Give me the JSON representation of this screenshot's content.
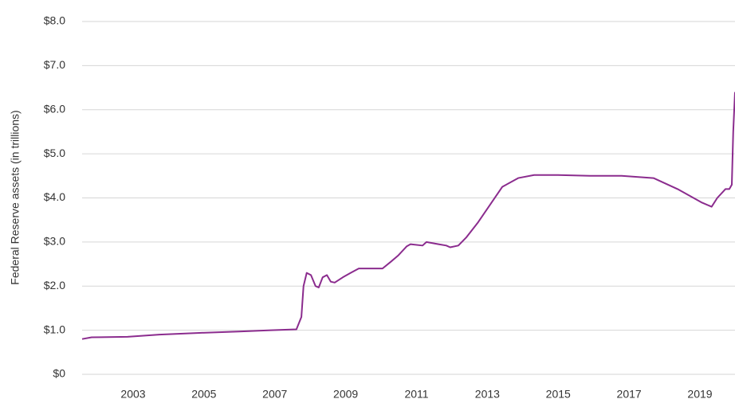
{
  "chart_data": {
    "type": "line",
    "y_label": "Federal Reserve assets (in trillions)",
    "x": [
      2001.56,
      2001.83,
      2002.84,
      2003.74,
      2004.87,
      2005.99,
      2006.89,
      2007.61,
      2007.75,
      2007.81,
      2007.9,
      2008.02,
      2008.15,
      2008.24,
      2008.35,
      2008.47,
      2008.58,
      2008.69,
      2008.92,
      2009.14,
      2009.37,
      2009.82,
      2010.04,
      2010.27,
      2010.49,
      2010.72,
      2010.83,
      2011.17,
      2011.28,
      2011.62,
      2011.84,
      2011.95,
      2012.18,
      2012.4,
      2012.74,
      2013.08,
      2013.42,
      2013.87,
      2014.32,
      2014.99,
      2015.89,
      2016.79,
      2017.69,
      2018.37,
      2019.04,
      2019.33,
      2019.49,
      2019.72,
      2019.83,
      2019.9,
      2019.94,
      2019.99
    ],
    "series": [
      {
        "name": "Federal Reserve assets",
        "color": "#8b2c8e",
        "values": [
          0.8,
          0.84,
          0.85,
          0.9,
          0.94,
          0.97,
          1.0,
          1.02,
          1.3,
          2.0,
          2.3,
          2.25,
          2.0,
          1.97,
          2.2,
          2.25,
          2.1,
          2.08,
          2.2,
          2.3,
          2.4,
          2.4,
          2.4,
          2.55,
          2.7,
          2.9,
          2.95,
          2.92,
          3.0,
          2.95,
          2.92,
          2.88,
          2.92,
          3.1,
          3.45,
          3.85,
          4.25,
          4.45,
          4.52,
          4.52,
          4.5,
          4.5,
          4.45,
          4.2,
          3.9,
          3.8,
          4.0,
          4.2,
          4.2,
          4.3,
          5.5,
          6.4
        ]
      }
    ],
    "xlim": [
      2001.56,
      2019.99
    ],
    "xticks": [
      2003,
      2005,
      2007,
      2009,
      2011,
      2013,
      2015,
      2017,
      2019
    ],
    "ylim": [
      0,
      8
    ],
    "yticks": [
      {
        "value": 0,
        "label": "$0"
      },
      {
        "value": 1,
        "label": "$1.0"
      },
      {
        "value": 2,
        "label": "$2.0"
      },
      {
        "value": 3,
        "label": "$3.0"
      },
      {
        "value": 4,
        "label": "$4.0"
      },
      {
        "value": 5,
        "label": "$5.0"
      },
      {
        "value": 6,
        "label": "$6.0"
      },
      {
        "value": 7,
        "label": "$7.0"
      },
      {
        "value": 8,
        "label": "$8.0"
      }
    ],
    "grid": true
  }
}
